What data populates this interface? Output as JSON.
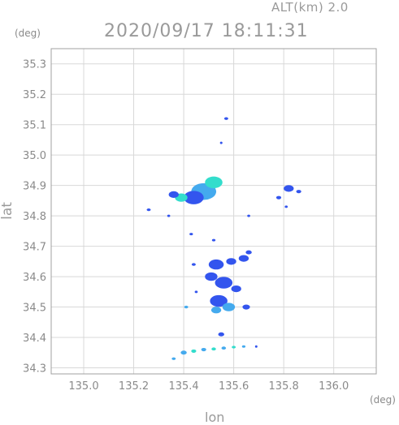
{
  "header": {
    "altitude_label": "ALT(km) 2.0",
    "timestamp": "2020/09/17 18:11:31"
  },
  "axes": {
    "y_unit": "(deg)",
    "x_unit": "(deg)",
    "y_label": "lat",
    "x_label": "lon"
  },
  "chart_data": {
    "type": "heatmap",
    "xlim": [
      134.87,
      136.17
    ],
    "ylim": [
      34.28,
      35.35
    ],
    "x_ticks": [
      "135.0",
      "135.2",
      "135.4",
      "135.6",
      "135.8",
      "136.0"
    ],
    "y_ticks": [
      "34.3",
      "34.4",
      "34.5",
      "34.6",
      "34.7",
      "34.8",
      "34.9",
      "35.0",
      "35.1",
      "35.2",
      "35.3"
    ],
    "grid": true,
    "colors": {
      "low": "#3355ee",
      "mid": "#44aaee",
      "high": "#33ddcc"
    },
    "echoes": [
      {
        "lon": 135.48,
        "lat": 34.88,
        "r": 0.05,
        "level": "mid"
      },
      {
        "lon": 135.52,
        "lat": 34.91,
        "r": 0.035,
        "level": "high"
      },
      {
        "lon": 135.44,
        "lat": 34.86,
        "r": 0.04,
        "level": "low"
      },
      {
        "lon": 135.39,
        "lat": 34.86,
        "r": 0.025,
        "level": "high"
      },
      {
        "lon": 135.36,
        "lat": 34.87,
        "r": 0.02,
        "level": "low"
      },
      {
        "lon": 135.57,
        "lat": 35.12,
        "r": 0.008,
        "level": "low"
      },
      {
        "lon": 135.55,
        "lat": 35.04,
        "r": 0.005,
        "level": "low"
      },
      {
        "lon": 135.82,
        "lat": 34.89,
        "r": 0.02,
        "level": "low"
      },
      {
        "lon": 135.86,
        "lat": 34.88,
        "r": 0.01,
        "level": "low"
      },
      {
        "lon": 135.78,
        "lat": 34.86,
        "r": 0.01,
        "level": "low"
      },
      {
        "lon": 135.81,
        "lat": 34.83,
        "r": 0.006,
        "level": "low"
      },
      {
        "lon": 135.26,
        "lat": 34.82,
        "r": 0.008,
        "level": "low"
      },
      {
        "lon": 135.34,
        "lat": 34.8,
        "r": 0.006,
        "level": "low"
      },
      {
        "lon": 135.43,
        "lat": 34.74,
        "r": 0.007,
        "level": "low"
      },
      {
        "lon": 135.52,
        "lat": 34.72,
        "r": 0.007,
        "level": "low"
      },
      {
        "lon": 135.66,
        "lat": 34.8,
        "r": 0.006,
        "level": "low"
      },
      {
        "lon": 135.53,
        "lat": 34.64,
        "r": 0.03,
        "level": "low"
      },
      {
        "lon": 135.51,
        "lat": 34.6,
        "r": 0.025,
        "level": "low"
      },
      {
        "lon": 135.56,
        "lat": 34.58,
        "r": 0.035,
        "level": "low"
      },
      {
        "lon": 135.54,
        "lat": 34.52,
        "r": 0.035,
        "level": "low"
      },
      {
        "lon": 135.58,
        "lat": 34.5,
        "r": 0.025,
        "level": "mid"
      },
      {
        "lon": 135.53,
        "lat": 34.49,
        "r": 0.02,
        "level": "mid"
      },
      {
        "lon": 135.59,
        "lat": 34.65,
        "r": 0.02,
        "level": "low"
      },
      {
        "lon": 135.64,
        "lat": 34.66,
        "r": 0.02,
        "level": "low"
      },
      {
        "lon": 135.66,
        "lat": 34.68,
        "r": 0.012,
        "level": "low"
      },
      {
        "lon": 135.61,
        "lat": 34.56,
        "r": 0.02,
        "level": "low"
      },
      {
        "lon": 135.65,
        "lat": 34.5,
        "r": 0.015,
        "level": "low"
      },
      {
        "lon": 135.55,
        "lat": 34.41,
        "r": 0.012,
        "level": "low"
      },
      {
        "lon": 135.41,
        "lat": 34.5,
        "r": 0.008,
        "level": "mid"
      },
      {
        "lon": 135.44,
        "lat": 34.64,
        "r": 0.008,
        "level": "low"
      },
      {
        "lon": 135.45,
        "lat": 34.55,
        "r": 0.006,
        "level": "low"
      },
      {
        "lon": 135.4,
        "lat": 34.35,
        "r": 0.012,
        "level": "mid"
      },
      {
        "lon": 135.44,
        "lat": 34.355,
        "r": 0.01,
        "level": "high"
      },
      {
        "lon": 135.48,
        "lat": 34.36,
        "r": 0.01,
        "level": "mid"
      },
      {
        "lon": 135.52,
        "lat": 34.362,
        "r": 0.009,
        "level": "high"
      },
      {
        "lon": 135.56,
        "lat": 34.365,
        "r": 0.009,
        "level": "mid"
      },
      {
        "lon": 135.6,
        "lat": 34.368,
        "r": 0.008,
        "level": "high"
      },
      {
        "lon": 135.64,
        "lat": 34.37,
        "r": 0.007,
        "level": "mid"
      },
      {
        "lon": 135.36,
        "lat": 34.33,
        "r": 0.008,
        "level": "mid"
      },
      {
        "lon": 135.69,
        "lat": 34.37,
        "r": 0.004,
        "level": "low"
      }
    ]
  }
}
